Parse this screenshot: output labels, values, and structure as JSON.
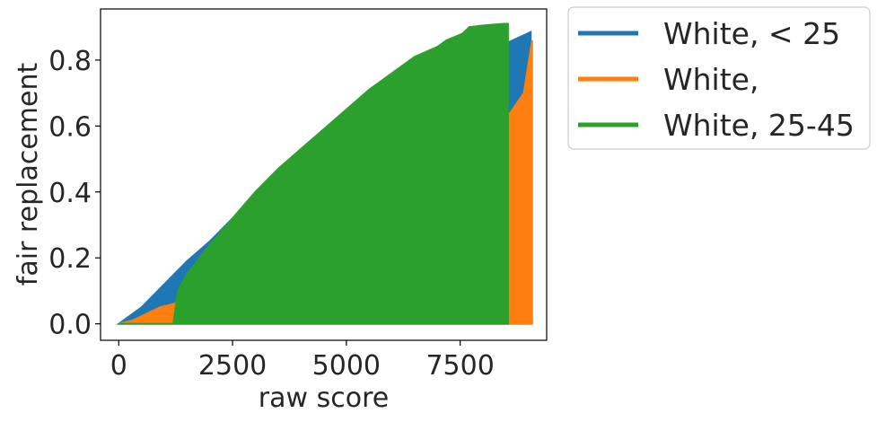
{
  "chart_data": {
    "type": "line",
    "title": "",
    "xlabel": "raw score",
    "ylabel": "fair replacement",
    "xlim": [
      -400,
      9400
    ],
    "ylim": [
      -0.05,
      0.955
    ],
    "xticks": [
      0,
      2500,
      5000,
      7500
    ],
    "xtick_labels": [
      "0",
      "2500",
      "5000",
      "7500"
    ],
    "yticks": [
      0.0,
      0.2,
      0.4,
      0.6,
      0.8
    ],
    "ytick_labels": [
      "0.0",
      "0.2",
      "0.4",
      "0.6",
      "0.8"
    ],
    "grid": false,
    "legend_position": "outside-right",
    "series": [
      {
        "name": "White, < 25",
        "color": "#1f77b4",
        "points": [
          [
            0,
            0.0
          ],
          [
            500,
            0.05
          ],
          [
            1000,
            0.12
          ],
          [
            1500,
            0.19
          ],
          [
            2000,
            0.25
          ],
          [
            2500,
            0.32
          ],
          [
            3000,
            0.39
          ],
          [
            3500,
            0.46
          ],
          [
            4000,
            0.53
          ],
          [
            4500,
            0.58
          ],
          [
            5000,
            0.63
          ],
          [
            5500,
            0.67
          ],
          [
            6000,
            0.71
          ],
          [
            6500,
            0.74
          ],
          [
            7000,
            0.76
          ],
          [
            7500,
            0.79
          ],
          [
            8000,
            0.82
          ],
          [
            8500,
            0.85
          ],
          [
            9050,
            0.885
          ]
        ]
      },
      {
        "name": "White,",
        "color": "#ff7f0e",
        "points": [
          [
            0,
            0.0
          ],
          [
            300,
            0.01
          ],
          [
            600,
            0.03
          ],
          [
            900,
            0.05
          ],
          [
            1200,
            0.06
          ],
          [
            7250,
            0.52
          ],
          [
            7600,
            0.54
          ],
          [
            8000,
            0.57
          ],
          [
            8300,
            0.6
          ],
          [
            8600,
            0.64
          ],
          [
            8900,
            0.7
          ],
          [
            9080,
            0.86
          ]
        ]
      },
      {
        "name": "White, 25-45",
        "color": "#2ca02c",
        "points": [
          [
            0,
            0.0
          ],
          [
            1200,
            0.0
          ],
          [
            1300,
            0.1
          ],
          [
            1500,
            0.15
          ],
          [
            2000,
            0.24
          ],
          [
            2500,
            0.32
          ],
          [
            3000,
            0.4
          ],
          [
            3500,
            0.47
          ],
          [
            4000,
            0.53
          ],
          [
            4500,
            0.59
          ],
          [
            5000,
            0.65
          ],
          [
            5500,
            0.71
          ],
          [
            6000,
            0.76
          ],
          [
            6500,
            0.81
          ],
          [
            7000,
            0.84
          ],
          [
            7200,
            0.86
          ],
          [
            7550,
            0.88
          ],
          [
            7700,
            0.9
          ],
          [
            8000,
            0.905
          ],
          [
            8450,
            0.91
          ],
          [
            8550,
            0.91
          ]
        ]
      }
    ]
  }
}
